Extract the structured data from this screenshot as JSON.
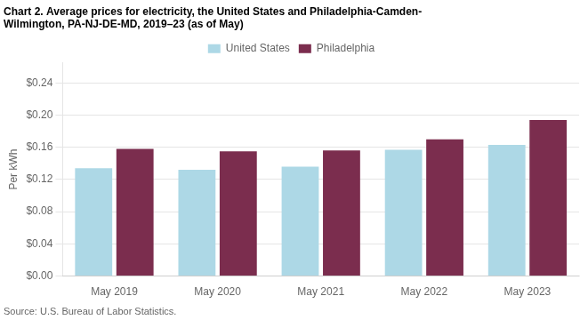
{
  "chart_data": {
    "type": "bar",
    "title": [
      "Chart 2. Average prices for electricity, the United States and Philadelphia-Camden-",
      "Wilmington, PA-NJ-DE-MD, 2019–23 (as of May)"
    ],
    "ylabel": "Per kWh",
    "source": "Source: U.S. Bureau of Labor Statistics.",
    "categories": [
      "May 2019",
      "May 2020",
      "May 2021",
      "May 2022",
      "May 2023"
    ],
    "series": [
      {
        "name": "United States",
        "color": "#ADD8E6",
        "values": [
          0.134,
          0.132,
          0.136,
          0.157,
          0.163
        ]
      },
      {
        "name": "Philadelphia",
        "color": "#7B2D4E",
        "values": [
          0.158,
          0.155,
          0.156,
          0.17,
          0.194
        ]
      }
    ],
    "ylim": [
      0.0,
      0.265
    ],
    "yticks": [
      {
        "value": 0.0,
        "label": "$0.00"
      },
      {
        "value": 0.04,
        "label": "$0.04"
      },
      {
        "value": 0.08,
        "label": "$0.08"
      },
      {
        "value": 0.12,
        "label": "$0.12"
      },
      {
        "value": 0.16,
        "label": "$0.16"
      },
      {
        "value": 0.2,
        "label": "$0.20"
      },
      {
        "value": 0.24,
        "label": "$0.24"
      }
    ],
    "grid": true,
    "legend": "top"
  }
}
